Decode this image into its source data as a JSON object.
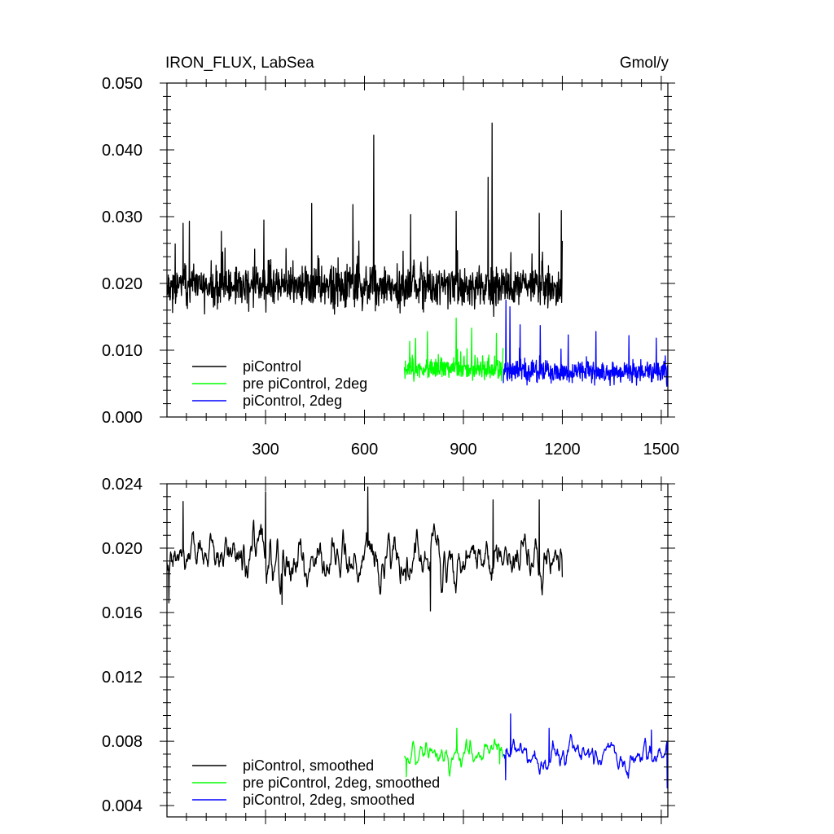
{
  "chart_data": [
    {
      "type": "line",
      "title": "IRON_FLUX, LabSea",
      "units": "Gmol/y",
      "xlim": [
        1,
        1520
      ],
      "ylim": [
        0.0,
        0.05
      ],
      "xticks": [
        300,
        600,
        900,
        1200,
        1500
      ],
      "xtick_labels": [
        "300",
        "600",
        "900",
        "1200",
        "1500"
      ],
      "yticks": [
        0.0,
        0.01,
        0.02,
        0.03,
        0.04,
        0.05
      ],
      "ytick_labels": [
        "0.000",
        "0.010",
        "0.020",
        "0.030",
        "0.040",
        "0.050"
      ],
      "grid": false,
      "legend_position": "bottom-left",
      "series": [
        {
          "name": "piControl",
          "color": "#000000",
          "x_range": [
            1,
            1200
          ],
          "mean": 0.0195,
          "noise": 0.0035,
          "min": 0.0125,
          "max": 0.044,
          "seed": 11,
          "spikes": [
            [
              50,
              0.029
            ],
            [
              69,
              0.0293
            ],
            [
              166,
              0.0278
            ],
            [
              295,
              0.0295
            ],
            [
              440,
              0.032
            ],
            [
              565,
              0.0318
            ],
            [
              628,
              0.0422
            ],
            [
              740,
              0.0303
            ],
            [
              878,
              0.0308
            ],
            [
              975,
              0.0359
            ],
            [
              987,
              0.044
            ],
            [
              1130,
              0.0305
            ],
            [
              1197,
              0.0309
            ]
          ]
        },
        {
          "name": "pre piControl, 2deg",
          "color": "#00ff00",
          "x_range": [
            721,
            1020
          ],
          "mean": 0.0072,
          "noise": 0.0018,
          "min": 0.0043,
          "max": 0.0148,
          "seed": 23,
          "spikes": [
            [
              791,
              0.0128
            ],
            [
              878,
              0.0148
            ],
            [
              925,
              0.0133
            ],
            [
              1000,
              0.0125
            ]
          ]
        },
        {
          "name": "piControl, 2deg",
          "color": "#0000ff",
          "x_range": [
            1021,
            1520
          ],
          "mean": 0.0068,
          "noise": 0.0018,
          "min": 0.004,
          "max": 0.0178,
          "seed": 37,
          "spikes": [
            [
              1029,
              0.0175
            ],
            [
              1041,
              0.0165
            ],
            [
              1072,
              0.0138
            ],
            [
              1133,
              0.0137
            ],
            [
              1218,
              0.0123
            ],
            [
              1302,
              0.0128
            ],
            [
              1402,
              0.0122
            ],
            [
              1485,
              0.0118
            ],
            [
              1517,
              0.0046
            ]
          ]
        }
      ]
    },
    {
      "type": "line",
      "title": "",
      "xlim": [
        1,
        1520
      ],
      "ylim": [
        0.0033,
        0.024
      ],
      "xticks": [
        300,
        600,
        900,
        1200,
        1500
      ],
      "xtick_labels": [],
      "yticks": [
        0.004,
        0.008,
        0.012,
        0.016,
        0.02,
        0.024
      ],
      "ytick_labels": [
        "0.004",
        "0.008",
        "0.012",
        "0.016",
        "0.020",
        "0.024"
      ],
      "grid": false,
      "legend_position": "bottom-left",
      "series": [
        {
          "name": "piControl, smoothed",
          "color": "#000000",
          "x_range": [
            1,
            1200
          ],
          "mean": 0.0193,
          "noise": 0.0014,
          "min": 0.0161,
          "max": 0.0239,
          "seed": 11,
          "spikes": [
            [
              7,
              0.0166
            ],
            [
              50,
              0.0229
            ],
            [
              300,
              0.0235
            ],
            [
              350,
              0.0165
            ],
            [
              610,
              0.0238
            ],
            [
              800,
              0.0161
            ],
            [
              990,
              0.023
            ],
            [
              1130,
              0.023
            ],
            [
              1200,
              0.0182
            ]
          ]
        },
        {
          "name": "pre piControl, 2deg, smoothed",
          "color": "#00ff00",
          "x_range": [
            721,
            1020
          ],
          "mean": 0.0072,
          "noise": 0.0006,
          "min": 0.0058,
          "max": 0.0088,
          "seed": 23,
          "spikes": [
            [
              727,
              0.0058
            ],
            [
              880,
              0.0088
            ],
            [
              1010,
              0.0066
            ]
          ]
        },
        {
          "name": "piControl, 2deg, smoothed",
          "color": "#0000ff",
          "x_range": [
            1021,
            1520
          ],
          "mean": 0.0071,
          "noise": 0.0007,
          "min": 0.0051,
          "max": 0.0097,
          "seed": 37,
          "spikes": [
            [
              1028,
              0.0056
            ],
            [
              1043,
              0.0097
            ],
            [
              1160,
              0.0088
            ],
            [
              1470,
              0.0087
            ],
            [
              1518,
              0.0051
            ]
          ]
        }
      ]
    }
  ]
}
